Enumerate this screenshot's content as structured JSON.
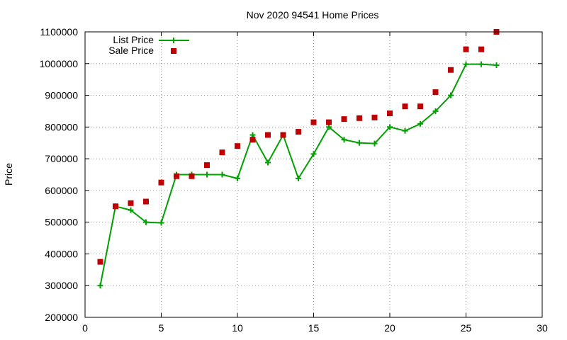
{
  "chart_data": {
    "type": "line",
    "title": "Nov 2020 94541 Home Prices",
    "xlabel": "",
    "ylabel": "Price",
    "xlim": [
      0,
      30
    ],
    "ylim": [
      200000,
      1100000
    ],
    "xticks": [
      0,
      5,
      10,
      15,
      20,
      25,
      30
    ],
    "yticks": [
      200000,
      300000,
      400000,
      500000,
      600000,
      700000,
      800000,
      900000,
      1000000,
      1100000
    ],
    "grid": true,
    "grid_style": "dotted",
    "legend_position": "top-left",
    "series": [
      {
        "name": "List Price",
        "style": "line-with-plus-markers",
        "color": "#00a000",
        "x": [
          1,
          2,
          3,
          4,
          5,
          6,
          7,
          8,
          9,
          10,
          11,
          12,
          13,
          14,
          15,
          16,
          17,
          18,
          19,
          20,
          21,
          22,
          23,
          24,
          25,
          26,
          27
        ],
        "values": [
          300000,
          550000,
          538000,
          500000,
          498000,
          650000,
          650000,
          650000,
          650000,
          638000,
          775000,
          688000,
          775000,
          638000,
          715000,
          800000,
          760000,
          750000,
          748000,
          800000,
          788000,
          810000,
          850000,
          900000,
          998000,
          998000,
          995000
        ]
      },
      {
        "name": "Sale Price",
        "style": "square-markers",
        "color": "#c00000",
        "x": [
          1,
          2,
          3,
          4,
          5,
          6,
          7,
          8,
          9,
          10,
          11,
          12,
          13,
          14,
          15,
          16,
          17,
          18,
          19,
          20,
          21,
          22,
          23,
          24,
          25,
          26,
          27
        ],
        "values": [
          375000,
          550000,
          560000,
          565000,
          625000,
          645000,
          645000,
          680000,
          720000,
          740000,
          760000,
          775000,
          775000,
          785000,
          815000,
          815000,
          825000,
          828000,
          830000,
          843000,
          865000,
          865000,
          910000,
          980000,
          1045000,
          1045000,
          1100000
        ]
      }
    ]
  }
}
